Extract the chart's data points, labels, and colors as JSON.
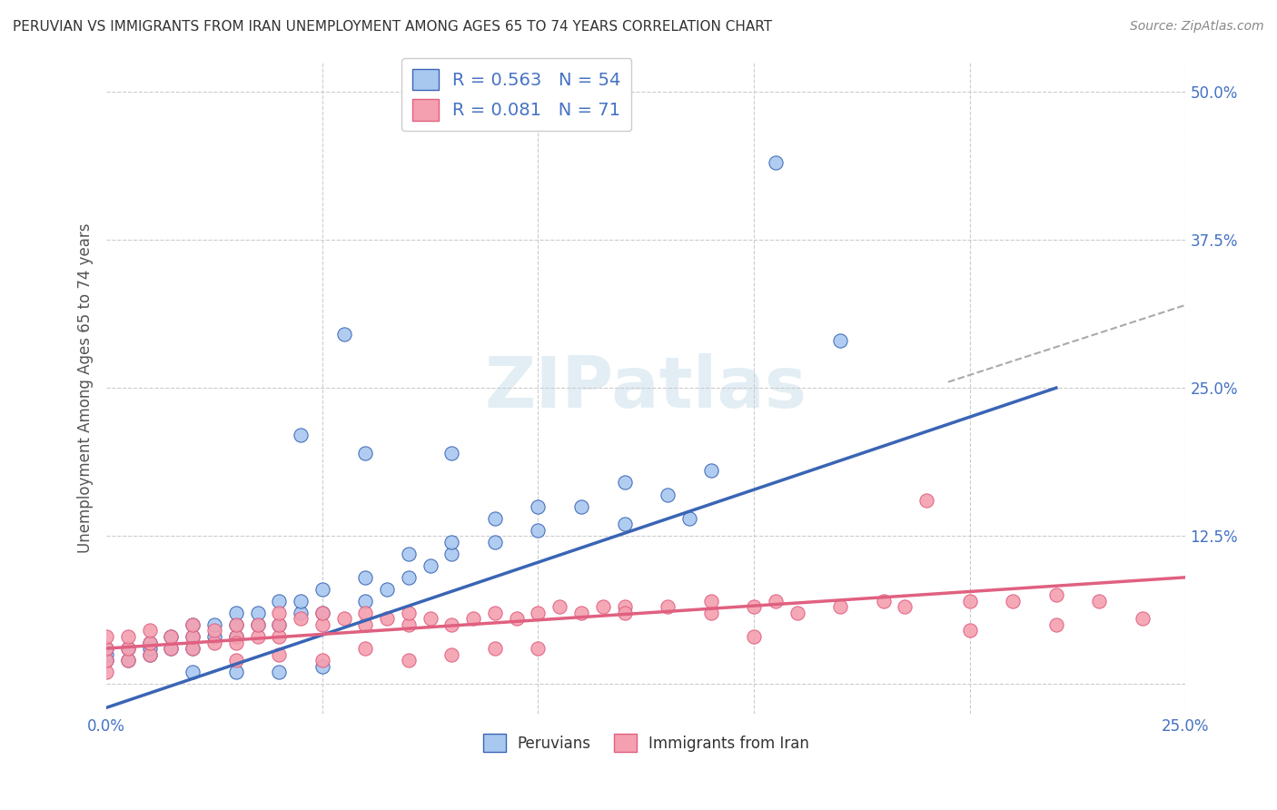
{
  "title": "PERUVIAN VS IMMIGRANTS FROM IRAN UNEMPLOYMENT AMONG AGES 65 TO 74 YEARS CORRELATION CHART",
  "source": "Source: ZipAtlas.com",
  "ylabel": "Unemployment Among Ages 65 to 74 years",
  "xlim": [
    0,
    0.25
  ],
  "ylim": [
    -0.025,
    0.525
  ],
  "xticks": [
    0.0,
    0.05,
    0.1,
    0.15,
    0.2,
    0.25
  ],
  "yticks": [
    0.0,
    0.125,
    0.25,
    0.375,
    0.5
  ],
  "xticklabels": [
    "0.0%",
    "",
    "",
    "",
    "",
    "25.0%"
  ],
  "yticklabels": [
    "",
    "12.5%",
    "25.0%",
    "37.5%",
    "50.0%"
  ],
  "peruvian_color": "#a8c8f0",
  "iran_color": "#f4a0b0",
  "peruvian_line_color": "#3a65b5",
  "iran_line_color": "#e06080",
  "R_peruvian": 0.563,
  "N_peruvian": 54,
  "R_iran": 0.081,
  "N_iran": 71,
  "legend_label_1": "Peruvians",
  "legend_label_2": "Immigrants from Iran",
  "peruvian_line_x0": 0.0,
  "peruvian_line_y0": -0.02,
  "peruvian_line_x1": 0.22,
  "peruvian_line_y1": 0.25,
  "iran_line_x0": 0.0,
  "iran_line_y0": 0.03,
  "iran_line_x1": 0.25,
  "iran_line_y1": 0.09,
  "dash_line_x0": 0.195,
  "dash_line_y0": 0.255,
  "dash_line_x1": 0.25,
  "dash_line_y1": 0.32,
  "peruvian_pts_x": [
    0.0,
    0.0,
    0.0,
    0.005,
    0.005,
    0.01,
    0.01,
    0.01,
    0.015,
    0.015,
    0.02,
    0.02,
    0.02,
    0.025,
    0.025,
    0.03,
    0.03,
    0.03,
    0.035,
    0.035,
    0.04,
    0.04,
    0.045,
    0.045,
    0.05,
    0.05,
    0.06,
    0.06,
    0.065,
    0.07,
    0.07,
    0.075,
    0.08,
    0.08,
    0.09,
    0.09,
    0.1,
    0.1,
    0.11,
    0.12,
    0.13,
    0.14,
    0.155,
    0.17,
    0.055,
    0.045,
    0.06,
    0.08,
    0.12,
    0.135,
    0.02,
    0.03,
    0.04,
    0.05
  ],
  "peruvian_pts_y": [
    0.02,
    0.025,
    0.03,
    0.02,
    0.03,
    0.025,
    0.03,
    0.035,
    0.03,
    0.04,
    0.03,
    0.04,
    0.05,
    0.04,
    0.05,
    0.04,
    0.05,
    0.06,
    0.05,
    0.06,
    0.05,
    0.07,
    0.06,
    0.07,
    0.06,
    0.08,
    0.07,
    0.09,
    0.08,
    0.09,
    0.11,
    0.1,
    0.11,
    0.12,
    0.12,
    0.14,
    0.13,
    0.15,
    0.15,
    0.17,
    0.16,
    0.18,
    0.44,
    0.29,
    0.295,
    0.21,
    0.195,
    0.195,
    0.135,
    0.14,
    0.01,
    0.01,
    0.01,
    0.015
  ],
  "iran_pts_x": [
    0.0,
    0.0,
    0.0,
    0.0,
    0.005,
    0.005,
    0.005,
    0.01,
    0.01,
    0.01,
    0.015,
    0.015,
    0.02,
    0.02,
    0.02,
    0.025,
    0.025,
    0.03,
    0.03,
    0.03,
    0.035,
    0.035,
    0.04,
    0.04,
    0.04,
    0.045,
    0.05,
    0.05,
    0.055,
    0.06,
    0.06,
    0.065,
    0.07,
    0.07,
    0.075,
    0.08,
    0.085,
    0.09,
    0.095,
    0.1,
    0.105,
    0.11,
    0.115,
    0.12,
    0.12,
    0.13,
    0.14,
    0.14,
    0.15,
    0.155,
    0.16,
    0.17,
    0.18,
    0.185,
    0.19,
    0.2,
    0.21,
    0.22,
    0.23,
    0.03,
    0.04,
    0.05,
    0.06,
    0.07,
    0.08,
    0.09,
    0.1,
    0.15,
    0.2,
    0.22,
    0.24
  ],
  "iran_pts_y": [
    0.01,
    0.02,
    0.03,
    0.04,
    0.02,
    0.03,
    0.04,
    0.025,
    0.035,
    0.045,
    0.03,
    0.04,
    0.03,
    0.04,
    0.05,
    0.035,
    0.045,
    0.04,
    0.05,
    0.035,
    0.04,
    0.05,
    0.04,
    0.05,
    0.06,
    0.055,
    0.05,
    0.06,
    0.055,
    0.05,
    0.06,
    0.055,
    0.05,
    0.06,
    0.055,
    0.05,
    0.055,
    0.06,
    0.055,
    0.06,
    0.065,
    0.06,
    0.065,
    0.065,
    0.06,
    0.065,
    0.06,
    0.07,
    0.065,
    0.07,
    0.06,
    0.065,
    0.07,
    0.065,
    0.155,
    0.07,
    0.07,
    0.075,
    0.07,
    0.02,
    0.025,
    0.02,
    0.03,
    0.02,
    0.025,
    0.03,
    0.03,
    0.04,
    0.045,
    0.05,
    0.055
  ]
}
